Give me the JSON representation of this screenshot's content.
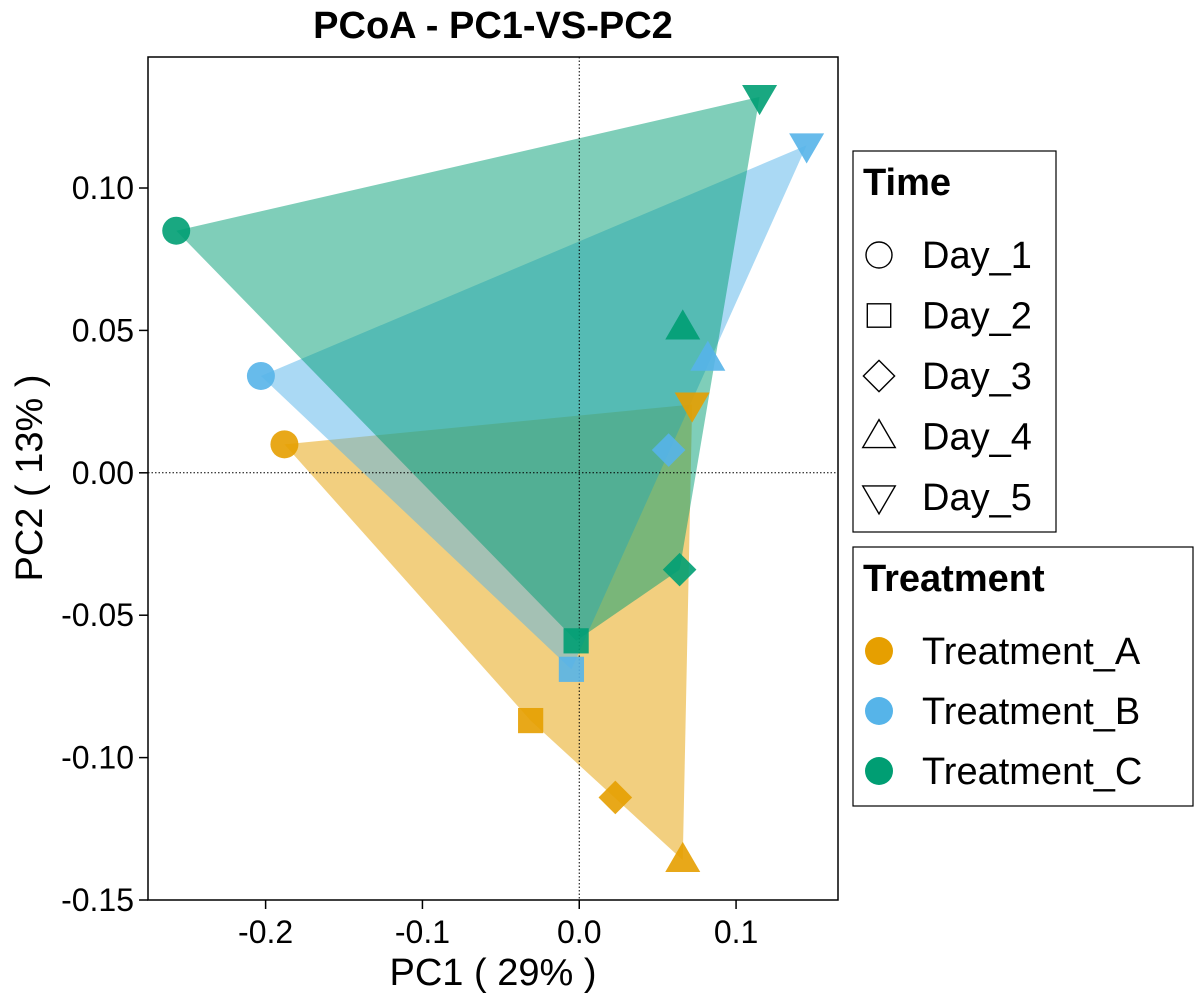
{
  "chart_data": {
    "type": "scatter",
    "title": "PCoA - PC1-VS-PC2",
    "xlabel": "PC1 ( 29% )",
    "ylabel": "PC2 ( 13% )",
    "xlim": [
      -0.275,
      0.165
    ],
    "ylim": [
      -0.15,
      0.146
    ],
    "xticks": [
      -0.2,
      -0.1,
      0.0,
      0.1
    ],
    "xtick_labels": [
      "-0.2",
      "-0.1",
      "0.0",
      "0.1"
    ],
    "yticks": [
      0.1,
      0.05,
      0.0,
      -0.05,
      -0.1,
      -0.15
    ],
    "ytick_labels": [
      "0.10",
      "0.05",
      "0.00",
      "-0.05",
      "-0.10",
      "-0.15"
    ],
    "reference_lines": {
      "x": 0,
      "y": 0
    },
    "grid": false,
    "legend_placement": "right",
    "legend_time": {
      "title": "Time",
      "items": [
        {
          "label": "Day_1",
          "shape": "circle"
        },
        {
          "label": "Day_2",
          "shape": "square"
        },
        {
          "label": "Day_3",
          "shape": "diamond"
        },
        {
          "label": "Day_4",
          "shape": "triangle-up"
        },
        {
          "label": "Day_5",
          "shape": "triangle-down"
        }
      ]
    },
    "legend_treatment": {
      "title": "Treatment",
      "items": [
        {
          "label": "Treatment_A",
          "color": "#E69F00"
        },
        {
          "label": "Treatment_B",
          "color": "#56B4E9"
        },
        {
          "label": "Treatment_C",
          "color": "#009E73"
        }
      ]
    },
    "series": [
      {
        "name": "Treatment_A",
        "color": "#E69F00",
        "points": [
          {
            "x": -0.188,
            "y": 0.01,
            "day": "Day_1"
          },
          {
            "x": -0.031,
            "y": -0.087,
            "day": "Day_2"
          },
          {
            "x": 0.023,
            "y": -0.114,
            "day": "Day_3"
          },
          {
            "x": 0.066,
            "y": -0.136,
            "day": "Day_4"
          },
          {
            "x": 0.072,
            "y": 0.024,
            "day": "Day_5"
          }
        ]
      },
      {
        "name": "Treatment_B",
        "color": "#56B4E9",
        "points": [
          {
            "x": -0.203,
            "y": 0.034,
            "day": "Day_1"
          },
          {
            "x": -0.005,
            "y": -0.069,
            "day": "Day_2"
          },
          {
            "x": 0.057,
            "y": 0.008,
            "day": "Day_3"
          },
          {
            "x": 0.082,
            "y": 0.04,
            "day": "Day_4"
          },
          {
            "x": 0.145,
            "y": 0.115,
            "day": "Day_5"
          }
        ]
      },
      {
        "name": "Treatment_C",
        "color": "#009E73",
        "points": [
          {
            "x": -0.257,
            "y": 0.085,
            "day": "Day_1"
          },
          {
            "x": -0.002,
            "y": -0.059,
            "day": "Day_2"
          },
          {
            "x": 0.064,
            "y": -0.034,
            "day": "Day_3"
          },
          {
            "x": 0.066,
            "y": 0.051,
            "day": "Day_4"
          },
          {
            "x": 0.115,
            "y": 0.132,
            "day": "Day_5"
          }
        ]
      }
    ]
  }
}
